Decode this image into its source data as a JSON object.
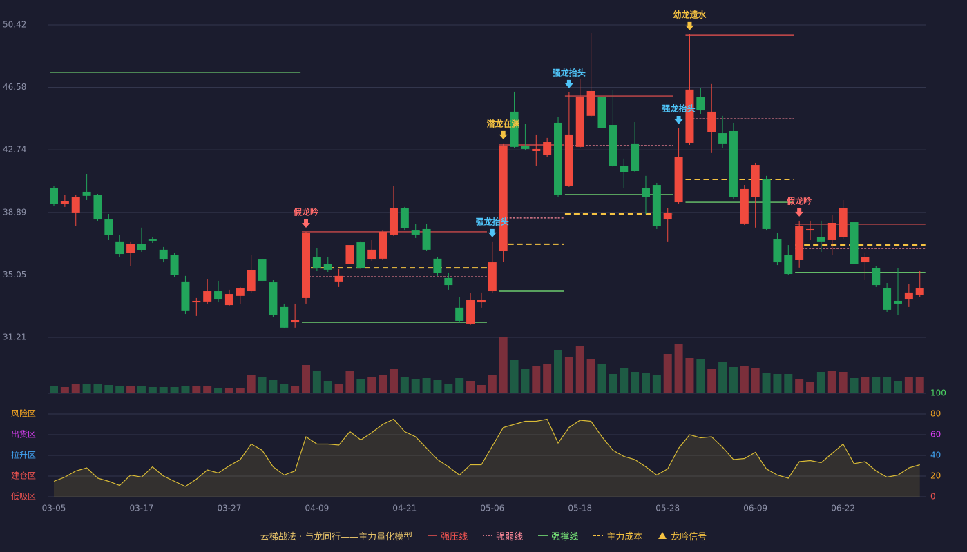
{
  "chart_data": {
    "type": "candlestick",
    "categories": [
      "03-05",
      null,
      null,
      null,
      null,
      null,
      null,
      null,
      "03-17",
      null,
      null,
      null,
      null,
      null,
      null,
      null,
      "03-27",
      null,
      null,
      null,
      null,
      null,
      null,
      null,
      "04-09",
      null,
      null,
      null,
      null,
      null,
      null,
      null,
      "04-21",
      null,
      null,
      null,
      null,
      null,
      null,
      null,
      "05-06",
      null,
      null,
      null,
      null,
      null,
      null,
      null,
      "05-18",
      null,
      null,
      null,
      null,
      null,
      null,
      null,
      "05-28",
      null,
      null,
      null,
      null,
      null,
      null,
      null,
      "06-09",
      null,
      null,
      null,
      null,
      null,
      null,
      null,
      "06-22",
      null,
      null,
      null,
      null,
      null,
      null,
      null
    ],
    "open": [
      40.41,
      39.4,
      38.89,
      40.16,
      39.95,
      38.46,
      37.11,
      36.39,
      36.94,
      37.23,
      36.6,
      36.26,
      34.65,
      33.37,
      33.42,
      34.05,
      33.2,
      33.76,
      34.05,
      36.0,
      34.6,
      33.08,
      32.14,
      33.63,
      36.13,
      35.71,
      34.65,
      35.71,
      37.06,
      36.0,
      36.05,
      37.53,
      39.14,
      37.78,
      37.87,
      36.05,
      34.86,
      33.04,
      32.06,
      33.37,
      34.05,
      36.51,
      45.08,
      43.0,
      42.66,
      42.41,
      44.4,
      40.54,
      42.92,
      44.83,
      46.01,
      44.27,
      41.77,
      43.13,
      40.41,
      40.58,
      38.46,
      39.52,
      43.17,
      46.01,
      43.81,
      43.76,
      43.89,
      38.21,
      39.86,
      40.92,
      37.23,
      36.26,
      35.96,
      37.78,
      37.36,
      37.19,
      37.4,
      38.29,
      35.83,
      35.49,
      34.26,
      33.46,
      33.54,
      33.84
    ],
    "high": [
      40.5,
      39.95,
      39.95,
      41.26,
      40.03,
      38.8,
      37.53,
      37.11,
      37.96,
      37.36,
      36.77,
      36.39,
      34.99,
      33.63,
      34.77,
      34.69,
      34.14,
      34.31,
      36.26,
      36.09,
      34.73,
      33.29,
      33.29,
      37.7,
      36.68,
      36.17,
      35.41,
      37.53,
      37.15,
      37.19,
      37.79,
      40.5,
      39.23,
      38.17,
      38.17,
      36.17,
      35.2,
      33.71,
      33.93,
      33.97,
      37.11,
      43.13,
      46.31,
      44.32,
      43.68,
      43.47,
      44.74,
      46.27,
      47.07,
      49.91,
      46.78,
      46.39,
      42.2,
      44.44,
      41.14,
      40.71,
      39.14,
      44.06,
      49.83,
      46.52,
      46.78,
      44.83,
      44.4,
      40.58,
      41.94,
      41.14,
      37.62,
      36.89,
      38.38,
      38.38,
      38.38,
      38.72,
      39.65,
      38.38,
      36.43,
      35.62,
      34.56,
      35.49,
      34.48,
      35.28
    ],
    "low": [
      39.31,
      39.23,
      38.08,
      39.65,
      38.38,
      37.19,
      36.17,
      35.62,
      36.47,
      37.02,
      35.83,
      34.9,
      32.65,
      32.53,
      33.29,
      33.37,
      33.16,
      33.29,
      33.93,
      34.56,
      32.48,
      31.76,
      31.81,
      33.29,
      35.28,
      35.24,
      34.31,
      35.58,
      35.41,
      35.92,
      35.96,
      37.45,
      37.78,
      37.32,
      36.51,
      34.99,
      34.14,
      32.1,
      31.98,
      33.04,
      33.97,
      35.83,
      42.83,
      42.7,
      41.77,
      42.28,
      39.86,
      40.46,
      42.83,
      44.74,
      43.89,
      41.69,
      40.41,
      41.35,
      38.8,
      37.87,
      37.11,
      39.44,
      43.04,
      44.95,
      42.54,
      42.83,
      39.74,
      38.12,
      37.96,
      37.78,
      35.66,
      35.03,
      35.5,
      37.19,
      36.47,
      36.26,
      37.23,
      35.62,
      34.73,
      34.31,
      32.78,
      32.61,
      33.08,
      33.71
    ],
    "close": [
      39.4,
      39.57,
      39.86,
      39.91,
      38.46,
      37.49,
      36.34,
      36.94,
      36.56,
      37.15,
      36.0,
      35.03,
      32.87,
      33.46,
      34.05,
      33.54,
      33.88,
      34.22,
      35.33,
      34.69,
      32.61,
      31.81,
      32.27,
      37.62,
      35.49,
      35.37,
      34.99,
      36.89,
      35.49,
      36.6,
      37.7,
      39.14,
      37.91,
      37.53,
      36.6,
      35.16,
      34.43,
      32.23,
      33.5,
      33.5,
      35.83,
      43.0,
      42.92,
      42.79,
      42.79,
      43.21,
      39.95,
      43.68,
      45.97,
      46.35,
      44.06,
      41.77,
      41.35,
      41.43,
      39.82,
      38.04,
      38.85,
      42.32,
      46.44,
      45.16,
      45.08,
      43.13,
      39.86,
      40.33,
      41.81,
      37.87,
      35.83,
      35.11,
      38.04,
      37.87,
      37.11,
      38.25,
      39.14,
      35.71,
      36.17,
      34.43,
      32.91,
      33.29,
      33.97,
      34.22
    ],
    "volume": [
      11,
      9,
      14,
      14,
      13,
      12,
      11,
      10,
      11,
      9,
      9,
      9,
      11,
      11,
      10,
      8,
      7,
      8,
      26,
      24,
      19,
      13,
      10,
      41,
      33,
      18,
      14,
      32,
      21,
      23,
      27,
      35,
      23,
      21,
      22,
      20,
      13,
      22,
      18,
      12,
      26,
      81,
      48,
      35,
      40,
      42,
      63,
      53,
      68,
      49,
      42,
      28,
      36,
      31,
      30,
      26,
      57,
      71,
      51,
      49,
      35,
      46,
      38,
      39,
      36,
      30,
      28,
      28,
      21,
      17,
      31,
      32,
      31,
      22,
      23,
      23,
      24,
      18,
      24,
      24
    ],
    "colors": {
      "up": "#f04a3e",
      "down": "#22a55b",
      "up_volume": "#7b2f3b",
      "down_volume": "#1e5b44"
    },
    "ylim": [
      31.21,
      50.42
    ],
    "yticks": [
      31.21,
      35.05,
      38.89,
      42.74,
      46.58,
      50.42
    ],
    "grid": true,
    "oscillator": {
      "values": [
        15,
        19,
        25,
        28,
        18,
        15,
        11,
        21,
        19,
        29,
        20,
        15,
        10,
        17,
        26,
        23,
        30,
        36,
        51,
        45,
        29,
        21,
        25,
        58,
        51,
        51,
        50,
        63,
        55,
        62,
        70,
        75,
        63,
        58,
        47,
        36,
        29,
        21,
        31,
        31,
        49,
        67,
        70,
        73,
        73,
        75,
        52,
        67,
        74,
        73,
        58,
        45,
        39,
        36,
        29,
        21,
        27,
        47,
        60,
        57,
        58,
        48,
        36,
        37,
        43,
        27,
        21,
        18,
        34,
        35,
        33,
        42,
        51,
        32,
        34,
        25,
        19,
        21,
        28,
        31
      ],
      "color": "#d9bb36",
      "ylim": [
        0,
        100
      ],
      "yticks": [
        0,
        20,
        40,
        60,
        80,
        100
      ],
      "tick_colors": [
        "#ef5350",
        "#f5a623",
        "#42a5f5",
        "#e040fb",
        "#f5a623",
        "#4cd964"
      ],
      "zones": [
        {
          "label": "低吸区",
          "color": "#ef5350"
        },
        {
          "label": "建仓区",
          "color": "#ef5350"
        },
        {
          "label": "拉升区",
          "color": "#42a5f5"
        },
        {
          "label": "出货区",
          "color": "#e040fb"
        },
        {
          "label": "风险区",
          "color": "#f5a623"
        }
      ]
    },
    "signals": [
      {
        "index": 23,
        "label": "假龙吟",
        "color": "#ff6b6b"
      },
      {
        "index": 40,
        "label": "强龙抬头",
        "color": "#4fc3f7"
      },
      {
        "index": 41,
        "label": "潜龙在渊",
        "color": "#f5c242"
      },
      {
        "index": 47,
        "label": "强龙抬头",
        "color": "#4fc3f7"
      },
      {
        "index": 57,
        "label": "强龙抬头",
        "color": "#4fc3f7"
      },
      {
        "index": 58,
        "label": "幼龙遗水",
        "color": "#f5c242"
      },
      {
        "index": 68,
        "label": "假龙吟",
        "color": "#ff6b6b"
      }
    ],
    "levels": [
      {
        "item": 2,
        "price": 47.5,
        "start": 0,
        "end": 22
      },
      {
        "item": 0,
        "price": 37.7,
        "start": 23,
        "end": 39
      },
      {
        "item": 1,
        "price": 34.94,
        "start": 23,
        "end": 39
      },
      {
        "item": 3,
        "price": 35.49,
        "start": 23,
        "end": 39
      },
      {
        "item": 2,
        "price": 32.14,
        "start": 23,
        "end": 39
      },
      {
        "item": 0,
        "price": 43.04,
        "start": 41,
        "end": 46
      },
      {
        "item": 1,
        "price": 38.55,
        "start": 41,
        "end": 46
      },
      {
        "item": 3,
        "price": 36.94,
        "start": 41,
        "end": 46
      },
      {
        "item": 2,
        "price": 34.05,
        "start": 41,
        "end": 46
      },
      {
        "item": 0,
        "price": 46.05,
        "start": 47,
        "end": 56
      },
      {
        "item": 1,
        "price": 43.0,
        "start": 47,
        "end": 56
      },
      {
        "item": 3,
        "price": 38.8,
        "start": 47,
        "end": 56
      },
      {
        "item": 2,
        "price": 39.99,
        "start": 47,
        "end": 56
      },
      {
        "item": 0,
        "price": 49.78,
        "start": 58,
        "end": 67
      },
      {
        "item": 1,
        "price": 44.65,
        "start": 58,
        "end": 67
      },
      {
        "item": 3,
        "price": 40.92,
        "start": 58,
        "end": 67
      },
      {
        "item": 2,
        "price": 39.52,
        "start": 58,
        "end": 67
      },
      {
        "item": 0,
        "price": 38.17,
        "start": 68,
        "end": 79
      },
      {
        "item": 1,
        "price": 36.68,
        "start": 68,
        "end": 79
      },
      {
        "item": 3,
        "price": 36.89,
        "start": 68,
        "end": 79
      },
      {
        "item": 2,
        "price": 35.2,
        "start": 68,
        "end": 79
      }
    ],
    "legend": {
      "title": "云梯战法 · 与龙同行——主力量化模型",
      "title_color": "#e8c46a",
      "items": [
        {
          "label": "强压线",
          "color": "#ef5350"
        },
        {
          "label": "强弱线",
          "color": "#ff8a9a"
        },
        {
          "label": "强撑线",
          "color": "#7cf07c"
        },
        {
          "label": "主力成本",
          "color": "#f5c242"
        },
        {
          "label": "龙吟信号",
          "color": "#f5c242"
        }
      ]
    }
  }
}
